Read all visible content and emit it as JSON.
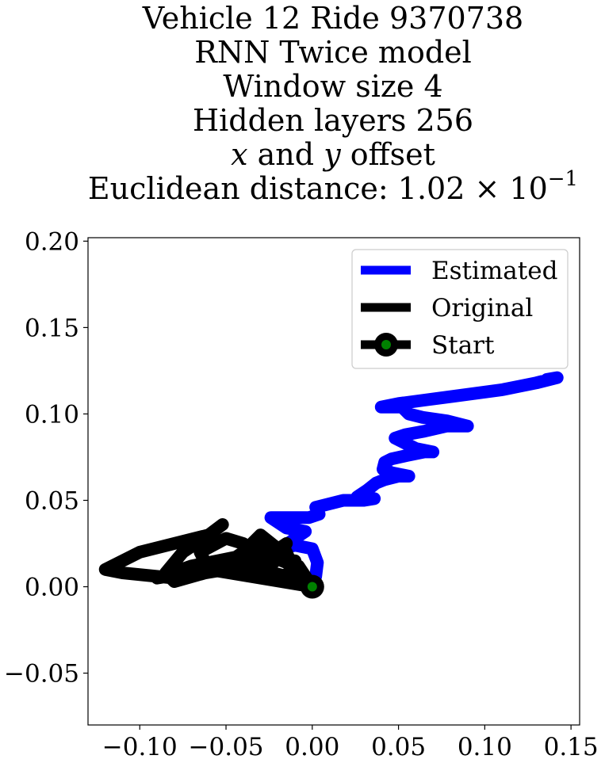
{
  "chart_data": {
    "type": "line",
    "title_lines": [
      "Vehicle 12 Ride 9370738",
      "RNN Twice model",
      "Window size 4",
      "Hidden layers 256"
    ],
    "title_offset_line": {
      "x": "x",
      "and": " and ",
      "y": "y",
      "rest": " offset"
    },
    "title_distance": {
      "prefix": "Euclidean distance: ",
      "mantissa": "1.02",
      "times": " × 10",
      "exponent": "−1"
    },
    "xlabel": "",
    "ylabel": "",
    "xlim": [
      -0.13,
      0.155
    ],
    "ylim": [
      -0.08,
      0.202
    ],
    "xticks": [
      -0.1,
      -0.05,
      0.0,
      0.05,
      0.1,
      0.15
    ],
    "xtick_labels": [
      "−0.10",
      "−0.05",
      "0.00",
      "0.05",
      "0.10",
      "0.15"
    ],
    "yticks": [
      -0.05,
      0.0,
      0.05,
      0.1,
      0.15,
      0.2
    ],
    "ytick_labels": [
      "−0.05",
      "0.00",
      "0.05",
      "0.10",
      "0.15",
      "0.20"
    ],
    "grid": false,
    "legend_position": "top-right",
    "series": [
      {
        "name": "Estimated",
        "color": "#0000ff",
        "points": [
          [
            0.0,
            0.0
          ],
          [
            0.002,
            0.006
          ],
          [
            0.003,
            0.014
          ],
          [
            0.0,
            0.022
          ],
          [
            -0.01,
            0.024
          ],
          [
            -0.018,
            0.022
          ],
          [
            -0.01,
            0.028
          ],
          [
            -0.004,
            0.032
          ],
          [
            -0.015,
            0.034
          ],
          [
            -0.024,
            0.04
          ],
          [
            -0.012,
            0.04
          ],
          [
            -0.002,
            0.04
          ],
          [
            0.004,
            0.042
          ],
          [
            0.002,
            0.046
          ],
          [
            0.01,
            0.048
          ],
          [
            0.018,
            0.05
          ],
          [
            0.025,
            0.05
          ],
          [
            0.03,
            0.05
          ],
          [
            0.036,
            0.051
          ],
          [
            0.026,
            0.052
          ],
          [
            0.032,
            0.056
          ],
          [
            0.037,
            0.06
          ],
          [
            0.042,
            0.062
          ],
          [
            0.05,
            0.064
          ],
          [
            0.056,
            0.064
          ],
          [
            0.046,
            0.066
          ],
          [
            0.041,
            0.068
          ],
          [
            0.042,
            0.072
          ],
          [
            0.046,
            0.074
          ],
          [
            0.055,
            0.076
          ],
          [
            0.065,
            0.078
          ],
          [
            0.07,
            0.078
          ],
          [
            0.06,
            0.08
          ],
          [
            0.052,
            0.084
          ],
          [
            0.048,
            0.086
          ],
          [
            0.054,
            0.088
          ],
          [
            0.065,
            0.09
          ],
          [
            0.078,
            0.093
          ],
          [
            0.09,
            0.093
          ],
          [
            0.078,
            0.096
          ],
          [
            0.064,
            0.098
          ],
          [
            0.056,
            0.1
          ],
          [
            0.052,
            0.104
          ],
          [
            0.04,
            0.104
          ],
          [
            0.05,
            0.106
          ],
          [
            0.065,
            0.108
          ],
          [
            0.08,
            0.11
          ],
          [
            0.095,
            0.112
          ],
          [
            0.11,
            0.114
          ],
          [
            0.12,
            0.116
          ],
          [
            0.13,
            0.118
          ],
          [
            0.142,
            0.121
          ],
          [
            0.136,
            0.12
          ]
        ]
      },
      {
        "name": "Original",
        "color": "#000000",
        "points": [
          [
            0.0,
            0.0
          ],
          [
            -0.01,
            0.012
          ],
          [
            -0.02,
            0.016
          ],
          [
            -0.015,
            0.025
          ],
          [
            -0.03,
            0.015
          ],
          [
            -0.05,
            0.01
          ],
          [
            -0.08,
            0.005
          ],
          [
            -0.11,
            0.008
          ],
          [
            -0.12,
            0.01
          ],
          [
            -0.1,
            0.02
          ],
          [
            -0.06,
            0.03
          ],
          [
            -0.052,
            0.036
          ],
          [
            -0.06,
            0.03
          ],
          [
            -0.075,
            0.02
          ],
          [
            -0.085,
            0.008
          ],
          [
            -0.08,
            0.003
          ],
          [
            -0.055,
            0.01
          ],
          [
            -0.04,
            0.02
          ],
          [
            -0.03,
            0.03
          ],
          [
            -0.02,
            0.022
          ],
          [
            -0.02,
            0.016
          ],
          [
            -0.035,
            0.025
          ],
          [
            -0.045,
            0.015
          ],
          [
            -0.06,
            0.01
          ],
          [
            -0.065,
            0.02
          ],
          [
            -0.05,
            0.028
          ],
          [
            -0.04,
            0.025
          ],
          [
            -0.025,
            0.012
          ],
          [
            -0.015,
            0.02
          ],
          [
            -0.01,
            0.008
          ],
          [
            0.0,
            0.0
          ],
          [
            -0.03,
            0.005
          ],
          [
            -0.06,
            0.01
          ],
          [
            -0.09,
            0.005
          ],
          [
            -0.07,
            0.012
          ],
          [
            -0.04,
            0.018
          ],
          [
            -0.01,
            0.015
          ],
          [
            -0.015,
            0.006
          ],
          [
            -0.03,
            0.01
          ],
          [
            -0.05,
            0.015
          ],
          [
            -0.025,
            0.02
          ],
          [
            -0.008,
            0.012
          ],
          [
            0.0,
            0.0
          ]
        ]
      }
    ],
    "legend": [
      {
        "label": "Estimated",
        "color": "#0000ff",
        "marker": false
      },
      {
        "label": "Original",
        "color": "#000000",
        "marker": false
      },
      {
        "label": "Start",
        "color": "#000000",
        "marker": true,
        "marker_fill": "#008000"
      }
    ],
    "start_point": {
      "name": "Start",
      "x": 0.0,
      "y": 0.0,
      "edge_color": "#000000",
      "fill_color": "#008000"
    }
  }
}
